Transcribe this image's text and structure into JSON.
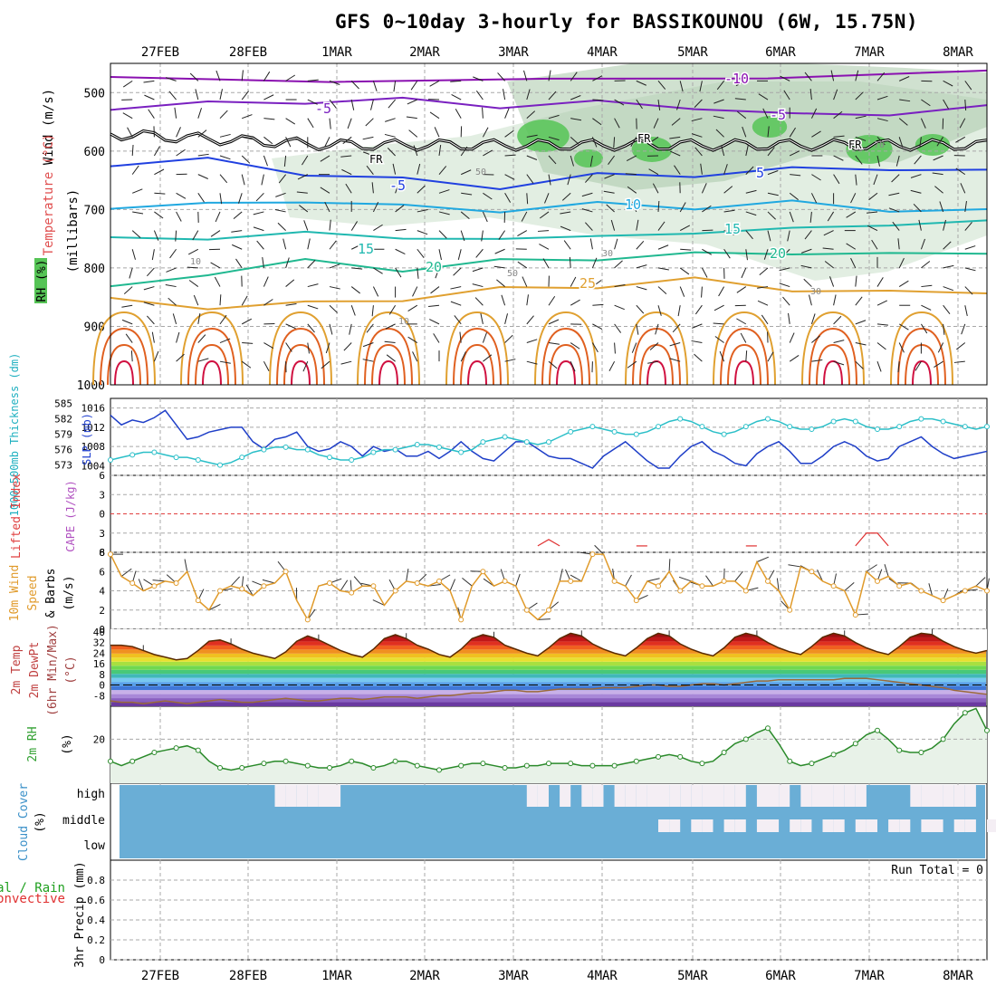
{
  "title": "GFS 0~10day 3-hourly for BASSIKOUNOU (6W, 15.75N)",
  "colors": {
    "grid": "#a8a8a8",
    "axis": "#000",
    "rh_fill": "#cfe3cf",
    "wind": "#e09a2a",
    "temp": "#5a2a00",
    "dew": "#9b6a3a",
    "cloud": "#6aaed6",
    "cloud_clear": "#f4eef4",
    "slp": "#1f3fc8",
    "thick": "#2bbfc8",
    "li": "#e03030",
    "temp_lines": [
      "#8a10b0",
      "#7a20c0",
      "#2040e0",
      "#20a8e0",
      "#20b8b0",
      "#20b890",
      "#e0a030",
      "#e06020",
      "#d01040"
    ]
  },
  "chart_data": [
    {
      "type": "contour",
      "panel": "upper-air",
      "xlabel_top": [
        "27FEB",
        "28FEB",
        "1MAR",
        "2MAR",
        "3MAR",
        "4MAR",
        "5MAR",
        "6MAR",
        "7MAR",
        "8MAR"
      ],
      "ylabel": [
        "Wind (m/s)",
        "Temperature (°C)",
        "RH (%)",
        "(millibars)"
      ],
      "yticks": [
        500,
        600,
        700,
        800,
        900,
        1000
      ],
      "ylim": [
        1000,
        450
      ],
      "temp_labels": [
        "-10",
        "-5",
        "-5",
        "5",
        "-5",
        "10",
        "15",
        "15",
        "20",
        "20",
        "25"
      ],
      "freezing_label": "FR",
      "rh_labels": [
        "50",
        "10",
        "10",
        "30",
        "50",
        "70",
        "30"
      ]
    },
    {
      "type": "line",
      "panel": "slp-thickness",
      "ylabel_left": "1000~500mb Thickness (dm)",
      "ylabel_right": "SLP (mb)",
      "yticks_left": [
        573,
        576,
        579,
        582,
        585
      ],
      "yticks_right": [
        1004,
        1008,
        1012,
        1016
      ],
      "series": [
        {
          "name": "SLP",
          "values": [
            1014.5,
            1012.5,
            1013.5,
            1013,
            1014,
            1015.5,
            1012.5,
            1009.5,
            1010,
            1011,
            1011.5,
            1012,
            1012,
            1009,
            1007.5,
            1009.5,
            1010,
            1011,
            1008,
            1007,
            1007.5,
            1009,
            1008,
            1006,
            1008,
            1007,
            1007.5,
            1006,
            1006,
            1007,
            1005.5,
            1007,
            1009,
            1007,
            1005.5,
            1005,
            1007,
            1009,
            1009,
            1007.5,
            1006,
            1005.5,
            1005.5,
            1004.5,
            1003.5,
            1006,
            1007.5,
            1009,
            1007,
            1005,
            1003.5,
            1003.5,
            1006,
            1008,
            1009,
            1007,
            1006,
            1004.5,
            1004,
            1006.5,
            1008,
            1009,
            1007,
            1004.5,
            1004.5,
            1006,
            1008,
            1009,
            1008,
            1006,
            1005,
            1005.5,
            1008,
            1009,
            1010,
            1008,
            1006.5,
            1005.5,
            1006,
            1006.5,
            1007
          ]
        },
        {
          "name": "Thickness",
          "values": [
            574,
            574.5,
            575,
            575.5,
            575.5,
            575,
            574.5,
            574.5,
            574,
            573.5,
            573,
            573.5,
            574.5,
            575.5,
            576,
            576.5,
            576.5,
            576,
            576,
            575,
            574.5,
            574,
            574,
            574.5,
            575.5,
            576,
            576,
            576.5,
            577,
            577,
            576.5,
            576,
            575.5,
            576,
            577.5,
            578,
            578.5,
            578,
            577.5,
            577,
            577.5,
            578.5,
            579.5,
            580,
            580.5,
            580,
            579.5,
            579,
            579,
            579.5,
            580.5,
            581.5,
            582,
            581.5,
            580.5,
            579.5,
            579,
            579.5,
            580.5,
            581.5,
            582,
            581.5,
            580.5,
            580,
            580,
            580.5,
            581.5,
            582,
            581.5,
            580.5,
            580,
            580,
            580.5,
            581.5,
            582,
            582,
            581.5,
            581,
            580.5,
            580,
            580.5
          ]
        }
      ]
    },
    {
      "type": "line",
      "panel": "lifted-index-cape",
      "ylabel": [
        "Lifted Index",
        "CAPE (J/kg)"
      ],
      "yticks": [
        "6",
        "3",
        "0",
        "3",
        "6"
      ],
      "ylim": [
        -6,
        6
      ],
      "series": [
        {
          "name": "Lifted Index",
          "values": [
            null,
            null,
            null,
            null,
            null,
            null,
            null,
            null,
            null,
            null,
            null,
            null,
            null,
            null,
            null,
            null,
            null,
            null,
            null,
            null,
            null,
            null,
            null,
            null,
            null,
            null,
            null,
            null,
            null,
            null,
            null,
            null,
            null,
            null,
            null,
            null,
            null,
            null,
            null,
            5,
            4,
            5,
            null,
            null,
            null,
            null,
            null,
            null,
            5,
            5,
            null,
            null,
            null,
            null,
            null,
            null,
            null,
            null,
            5,
            5,
            null,
            null,
            null,
            null,
            null,
            null,
            null,
            null,
            5,
            3,
            3,
            5,
            null,
            null,
            null,
            null,
            null,
            null,
            null,
            null,
            null
          ]
        }
      ]
    },
    {
      "type": "line",
      "panel": "10m-wind",
      "ylabel": [
        "10m Wind",
        "Speed",
        "& Barbs",
        "(m/s)"
      ],
      "yticks": [
        0,
        2,
        4,
        6,
        8
      ],
      "ylim": [
        0,
        8
      ],
      "series": [
        {
          "name": "Speed",
          "values": [
            7.8,
            5.5,
            4.8,
            4,
            4.5,
            5,
            4.8,
            6,
            3,
            2,
            4,
            4.5,
            4.2,
            3.5,
            4.5,
            4.8,
            6,
            3,
            1,
            4.5,
            4.8,
            4,
            3.8,
            4.5,
            4.5,
            2.5,
            4,
            5,
            4.8,
            4.5,
            5,
            4,
            1,
            4.5,
            6,
            4.5,
            5,
            4.5,
            2,
            1,
            2,
            5,
            5,
            5,
            7.8,
            7.8,
            5,
            4.5,
            3,
            5,
            4.5,
            6,
            4,
            5,
            4.5,
            4.5,
            5,
            5,
            4,
            7,
            5,
            4,
            2,
            6.5,
            6,
            5,
            4.5,
            4,
            1.5,
            6,
            5,
            5.5,
            4.5,
            4.8,
            4,
            3.5,
            3,
            3.5,
            4,
            4.5,
            4
          ]
        }
      ]
    },
    {
      "type": "area",
      "panel": "2m-temp-dewpt",
      "ylabel": [
        "2m Temp",
        "2m DewPt",
        "(6hr Min/Max)",
        "(°C)"
      ],
      "yticks": [
        40,
        32,
        24,
        16,
        8,
        0,
        -8
      ],
      "ylim": [
        -16,
        40
      ],
      "series": [
        {
          "name": "2m Temp",
          "values": [
            30,
            30,
            29,
            26,
            23,
            21,
            19,
            20,
            26,
            33,
            34,
            31,
            27,
            24,
            22,
            20,
            25,
            33,
            37,
            34,
            30,
            26,
            23,
            21,
            27,
            35,
            38,
            35,
            30,
            27,
            23,
            21,
            27,
            35,
            38,
            36,
            30,
            27,
            24,
            22,
            28,
            35,
            39,
            37,
            31,
            27,
            24,
            22,
            28,
            35,
            39,
            37,
            31,
            27,
            24,
            22,
            28,
            36,
            39,
            37,
            32,
            28,
            25,
            23,
            29,
            36,
            39,
            37,
            32,
            28,
            25,
            23,
            29,
            36,
            39,
            38,
            33,
            29,
            26,
            24,
            26
          ]
        },
        {
          "name": "2m DewPt",
          "values": [
            -12,
            -13,
            -13,
            -14,
            -13,
            -12,
            -13,
            -14,
            -13,
            -12,
            -11,
            -12,
            -13,
            -13,
            -12,
            -11,
            -10,
            -11,
            -12,
            -12,
            -11,
            -10,
            -10,
            -11,
            -10,
            -9,
            -9,
            -9,
            -10,
            -9,
            -8,
            -8,
            -7,
            -6,
            -6,
            -5,
            -4,
            -4,
            -5,
            -5,
            -4,
            -3,
            -3,
            -3,
            -3,
            -2,
            -2,
            -2,
            -1,
            0,
            0,
            -1,
            -1,
            0,
            1,
            1,
            0,
            1,
            2,
            3,
            3,
            4,
            4,
            4,
            4,
            4,
            4,
            5,
            5,
            5,
            4,
            3,
            2,
            1,
            0,
            -1,
            -2,
            -4,
            -5,
            -6,
            -7
          ]
        }
      ]
    },
    {
      "type": "line",
      "panel": "2m-rh",
      "ylabel": [
        "2m RH",
        "(%)"
      ],
      "yticks": [
        20
      ],
      "ylim": [
        0,
        35
      ],
      "series": [
        {
          "name": "2m RH",
          "values": [
            10,
            8,
            10,
            12,
            14,
            15,
            16,
            17,
            15,
            10,
            7,
            6,
            7,
            8,
            9,
            10,
            10,
            9,
            8,
            7,
            7,
            8,
            10,
            9,
            7,
            8,
            10,
            10,
            8,
            7,
            6,
            7,
            8,
            9,
            9,
            8,
            7,
            7,
            8,
            8,
            9,
            9,
            9,
            8,
            8,
            8,
            8,
            9,
            10,
            11,
            12,
            13,
            12,
            10,
            9,
            10,
            14,
            18,
            20,
            23,
            25,
            18,
            10,
            8,
            9,
            11,
            13,
            15,
            18,
            22,
            24,
            20,
            15,
            14,
            14,
            16,
            20,
            27,
            32,
            34,
            24,
            12,
            9,
            8,
            10,
            11,
            11,
            12,
            12,
            12,
            13,
            14
          ]
        }
      ]
    },
    {
      "type": "heatmap",
      "panel": "cloud-cover",
      "ylabel": [
        "Cloud Cover",
        "(%)"
      ],
      "yticks": [
        "high",
        "middle",
        "low"
      ],
      "runs": {
        "high": [
          [
            0,
            0
          ],
          [
            0,
            0
          ],
          [
            0,
            0
          ],
          [
            0,
            0
          ],
          [
            0,
            0
          ],
          [
            0,
            0
          ],
          [
            0,
            0
          ],
          [
            0,
            0
          ],
          [
            0,
            0
          ],
          [
            0,
            0
          ],
          [
            0,
            0
          ],
          [
            0,
            0
          ],
          [
            0,
            0
          ],
          [
            0,
            0
          ],
          [
            0,
            0
          ],
          [
            1,
            0
          ],
          [
            1,
            0
          ],
          [
            1,
            0
          ],
          [
            1,
            0
          ],
          [
            1,
            0
          ],
          [
            1,
            0
          ],
          [
            0,
            0
          ],
          [
            0,
            0
          ],
          [
            0,
            0
          ],
          [
            0,
            0
          ],
          [
            0,
            0
          ],
          [
            0,
            0
          ],
          [
            0,
            0
          ],
          [
            0,
            0
          ],
          [
            0,
            0
          ],
          [
            0,
            0
          ],
          [
            0,
            0
          ],
          [
            0,
            0
          ],
          [
            0,
            0
          ],
          [
            0,
            0
          ],
          [
            0,
            0
          ],
          [
            0,
            0
          ],
          [
            0,
            0
          ],
          [
            1,
            0
          ],
          [
            1,
            0
          ],
          [
            0,
            0
          ],
          [
            1,
            0
          ],
          [
            0,
            0
          ],
          [
            1,
            0
          ],
          [
            1,
            0
          ],
          [
            0,
            0
          ],
          [
            1,
            0
          ],
          [
            1,
            0
          ],
          [
            1,
            0
          ],
          [
            1,
            0
          ],
          [
            1,
            0
          ],
          [
            1,
            0
          ],
          [
            1,
            0
          ],
          [
            1,
            0
          ],
          [
            1,
            0
          ],
          [
            1,
            0
          ],
          [
            1,
            0
          ],
          [
            1,
            0
          ],
          [
            0,
            0
          ],
          [
            1,
            0
          ],
          [
            1,
            0
          ],
          [
            1,
            0
          ],
          [
            0,
            0
          ],
          [
            1,
            0
          ],
          [
            1,
            0
          ],
          [
            1,
            0
          ],
          [
            1,
            0
          ],
          [
            1,
            0
          ],
          [
            1,
            0
          ],
          [
            0,
            0
          ],
          [
            0,
            0
          ],
          [
            0,
            0
          ],
          [
            0,
            0
          ],
          [
            1,
            0
          ],
          [
            1,
            0
          ],
          [
            1,
            0
          ],
          [
            1,
            0
          ],
          [
            1,
            0
          ],
          [
            1,
            0
          ],
          [
            0,
            0
          ],
          [
            0,
            0
          ]
        ]
      }
    },
    {
      "type": "bar",
      "panel": "precip",
      "ylabel": [
        "Total / Rain",
        "Convective",
        "3hr Precip (mm)"
      ],
      "yticks": [
        0,
        0.2,
        0.4,
        0.6,
        0.8
      ],
      "ylim": [
        0,
        1
      ],
      "annotation": "Run Total = 0",
      "xlabel_bottom": [
        "27FEB",
        "28FEB",
        "1MAR",
        "2MAR",
        "3MAR",
        "4MAR",
        "5MAR",
        "6MAR",
        "7MAR",
        "8MAR"
      ]
    }
  ]
}
